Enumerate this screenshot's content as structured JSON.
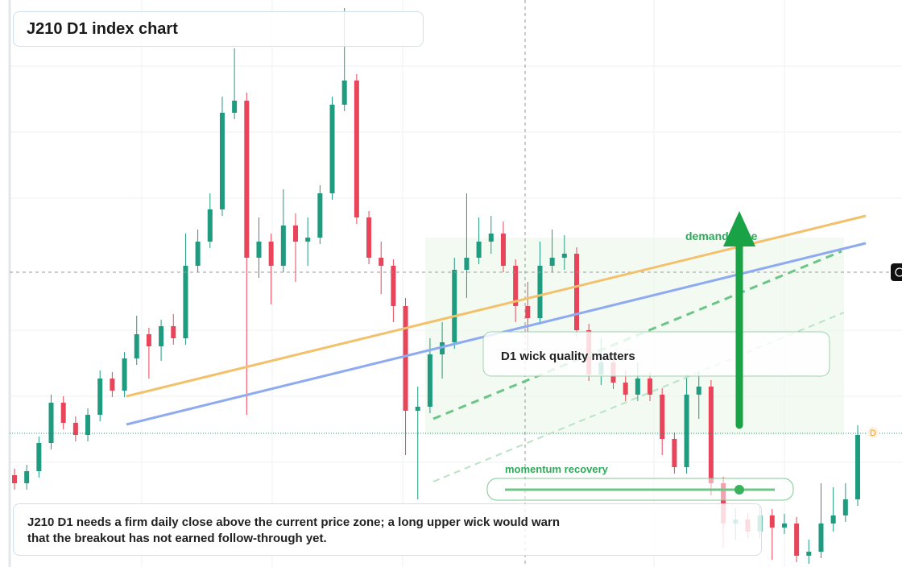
{
  "chart_data": {
    "type": "candlestick",
    "title": "J210 D1 index chart",
    "ylim": [
      0,
      704
    ],
    "up_color": "#1f9b7f",
    "down_color": "#e8455a",
    "annotations": {
      "wick": "D1 wick quality matters",
      "zone": "demand zone",
      "momentum": "momentum recovery",
      "marker": "D"
    },
    "note_lines": [
      "J210 D1 needs a firm daily close above the current price zone; a long upper wick would warn",
      "that the breakout has not earned follow-through yet."
    ],
    "candles": [
      [
        114,
        122,
        96,
        104
      ],
      [
        104,
        127,
        96,
        119
      ],
      [
        119,
        162,
        111,
        154
      ],
      [
        154,
        214,
        146,
        204
      ],
      [
        204,
        212,
        171,
        179
      ],
      [
        179,
        187,
        156,
        164
      ],
      [
        164,
        197,
        156,
        189
      ],
      [
        189,
        244,
        181,
        234
      ],
      [
        234,
        242,
        211,
        219
      ],
      [
        219,
        267,
        211,
        259
      ],
      [
        259,
        312,
        251,
        289
      ],
      [
        289,
        297,
        234,
        274
      ],
      [
        274,
        307,
        256,
        299
      ],
      [
        299,
        314,
        276,
        284
      ],
      [
        284,
        414,
        276,
        374
      ],
      [
        374,
        419,
        366,
        404
      ],
      [
        404,
        464,
        396,
        444
      ],
      [
        444,
        584,
        436,
        564
      ],
      [
        564,
        644,
        556,
        579
      ],
      [
        579,
        589,
        189,
        384
      ],
      [
        384,
        434,
        359,
        404
      ],
      [
        404,
        414,
        326,
        374
      ],
      [
        374,
        469,
        366,
        424
      ],
      [
        424,
        439,
        354,
        404
      ],
      [
        404,
        434,
        374,
        409
      ],
      [
        409,
        474,
        401,
        464
      ],
      [
        464,
        584,
        456,
        574
      ],
      [
        574,
        694,
        566,
        604
      ],
      [
        604,
        612,
        426,
        434
      ],
      [
        434,
        442,
        376,
        384
      ],
      [
        384,
        404,
        339,
        374
      ],
      [
        374,
        382,
        304,
        324
      ],
      [
        324,
        334,
        139,
        194
      ],
      [
        194,
        224,
        84,
        199
      ],
      [
        199,
        284,
        191,
        264
      ],
      [
        264,
        304,
        234,
        279
      ],
      [
        279,
        384,
        271,
        369
      ],
      [
        369,
        464,
        334,
        384
      ],
      [
        384,
        434,
        376,
        404
      ],
      [
        404,
        436,
        389,
        414
      ],
      [
        414,
        429,
        366,
        374
      ],
      [
        374,
        382,
        304,
        324
      ],
      [
        324,
        354,
        264,
        309
      ],
      [
        309,
        404,
        301,
        374
      ],
      [
        374,
        419,
        366,
        384
      ],
      [
        384,
        412,
        369,
        389
      ],
      [
        389,
        397,
        286,
        294
      ],
      [
        294,
        302,
        231,
        239
      ],
      [
        239,
        284,
        226,
        254
      ],
      [
        254,
        264,
        221,
        229
      ],
      [
        229,
        244,
        206,
        214
      ],
      [
        214,
        254,
        206,
        234
      ],
      [
        234,
        242,
        206,
        214
      ],
      [
        214,
        222,
        139,
        159
      ],
      [
        159,
        167,
        116,
        124
      ],
      [
        124,
        239,
        116,
        214
      ],
      [
        214,
        244,
        184,
        224
      ],
      [
        224,
        232,
        89,
        104
      ],
      [
        104,
        112,
        24,
        54
      ],
      [
        54,
        74,
        34,
        59
      ],
      [
        59,
        67,
        36,
        44
      ],
      [
        44,
        76,
        36,
        64
      ],
      [
        64,
        72,
        9,
        49
      ],
      [
        49,
        66,
        41,
        54
      ],
      [
        54,
        62,
        6,
        14
      ],
      [
        14,
        34,
        4,
        19
      ],
      [
        19,
        104,
        11,
        54
      ],
      [
        54,
        99,
        44,
        64
      ],
      [
        64,
        104,
        56,
        84
      ],
      [
        84,
        176,
        76,
        164
      ]
    ]
  }
}
